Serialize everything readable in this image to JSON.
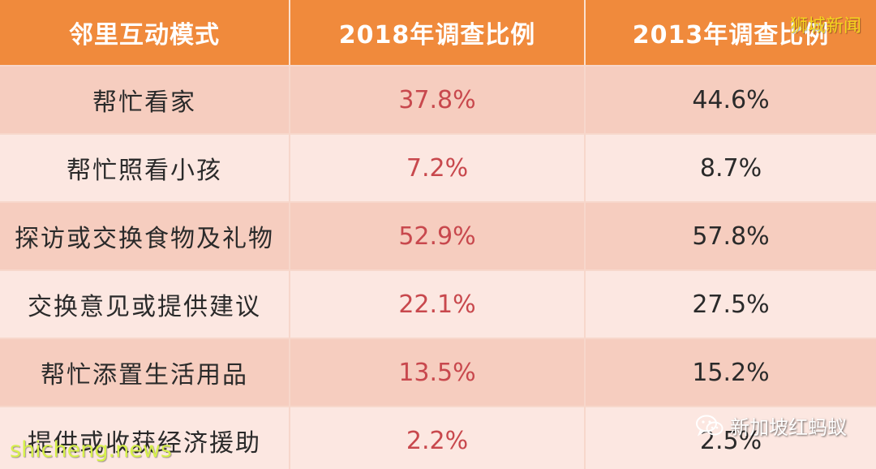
{
  "table": {
    "headers": [
      "邻里互动模式",
      "2018年调查比例",
      "2013年调查比例"
    ],
    "rows": [
      {
        "mode": "帮忙看家",
        "y2018": "37.8%",
        "y2013": "44.6%"
      },
      {
        "mode": "帮忙照看小孩",
        "y2018": "7.2%",
        "y2013": "8.7%"
      },
      {
        "mode": "探访或交换食物及礼物",
        "y2018": "52.9%",
        "y2013": "57.8%"
      },
      {
        "mode": "交换意见或提供建议",
        "y2018": "22.1%",
        "y2013": "27.5%"
      },
      {
        "mode": "帮忙添置生活用品",
        "y2018": "13.5%",
        "y2013": "15.2%"
      },
      {
        "mode": "提供或收获经济援助",
        "y2018": "2.2%",
        "y2013": "2.5%"
      }
    ]
  },
  "watermarks": {
    "top_right": "狮城新闻",
    "bottom_left": "shicheng.news",
    "bottom_right": "新加坡红蚂蚁",
    "bottom_right_icon": "wechat-icon"
  },
  "colors": {
    "header_bg": "#f08a3c",
    "row_dark": "#f6cdbf",
    "row_light": "#fce7e1",
    "accent_text": "#c8484d"
  }
}
